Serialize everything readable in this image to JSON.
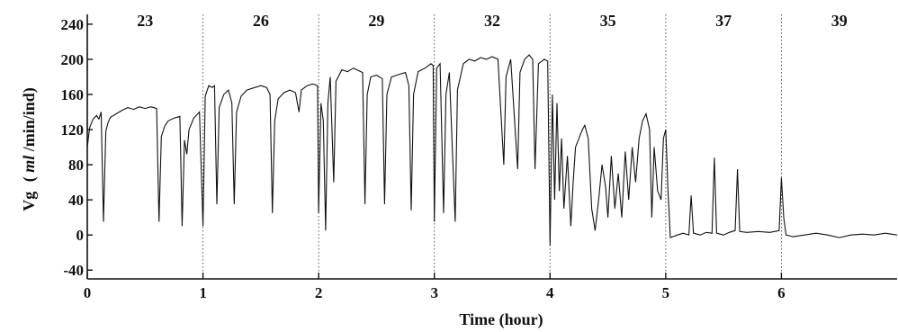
{
  "chart_data": {
    "type": "line",
    "title": "",
    "xlabel": "Time (hour)",
    "ylabel_prefix": "Vg",
    "ylabel_unit_italic": "ml",
    "ylabel_unit_rest": "/min/ind)",
    "ylabel_open": "(",
    "xlim": [
      0,
      7
    ],
    "ylim": [
      -50,
      245
    ],
    "x_ticks": [
      0,
      1,
      2,
      3,
      4,
      5,
      6
    ],
    "x_tick_labels": [
      "0",
      "1",
      "2",
      "3",
      "4",
      "5",
      "6"
    ],
    "y_ticks": [
      -40,
      0,
      40,
      80,
      120,
      160,
      200,
      240
    ],
    "y_tick_labels": [
      "-40",
      "0",
      "40",
      "80",
      "120",
      "160",
      "200",
      "240"
    ],
    "segment_dividers": [
      1,
      2,
      3,
      4,
      5,
      6
    ],
    "segment_labels": [
      {
        "x": 0.5,
        "label": "23"
      },
      {
        "x": 1.5,
        "label": "26"
      },
      {
        "x": 2.5,
        "label": "29"
      },
      {
        "x": 3.5,
        "label": "32"
      },
      {
        "x": 4.5,
        "label": "35"
      },
      {
        "x": 5.5,
        "label": "37"
      },
      {
        "x": 6.5,
        "label": "39"
      }
    ],
    "series": [
      {
        "points": [
          [
            0,
            100
          ],
          [
            0.02,
            122
          ],
          [
            0.05,
            132
          ],
          [
            0.08,
            136
          ],
          [
            0.1,
            132
          ],
          [
            0.12,
            140
          ],
          [
            0.14,
            15
          ],
          [
            0.16,
            118
          ],
          [
            0.18,
            128
          ],
          [
            0.2,
            134
          ],
          [
            0.25,
            138
          ],
          [
            0.3,
            142
          ],
          [
            0.35,
            145
          ],
          [
            0.4,
            143
          ],
          [
            0.45,
            146
          ],
          [
            0.5,
            144
          ],
          [
            0.55,
            146
          ],
          [
            0.6,
            144
          ],
          [
            0.62,
            15
          ],
          [
            0.64,
            112
          ],
          [
            0.67,
            124
          ],
          [
            0.7,
            130
          ],
          [
            0.75,
            133
          ],
          [
            0.8,
            135
          ],
          [
            0.82,
            10
          ],
          [
            0.84,
            108
          ],
          [
            0.86,
            92
          ],
          [
            0.88,
            120
          ],
          [
            0.92,
            133
          ],
          [
            0.97,
            140
          ],
          [
            1.0,
            10
          ],
          [
            1.02,
            158
          ],
          [
            1.05,
            170
          ],
          [
            1.08,
            168
          ],
          [
            1.1,
            170
          ],
          [
            1.12,
            35
          ],
          [
            1.14,
            145
          ],
          [
            1.18,
            160
          ],
          [
            1.22,
            165
          ],
          [
            1.25,
            150
          ],
          [
            1.27,
            35
          ],
          [
            1.29,
            140
          ],
          [
            1.33,
            158
          ],
          [
            1.38,
            165
          ],
          [
            1.45,
            168
          ],
          [
            1.5,
            170
          ],
          [
            1.55,
            168
          ],
          [
            1.58,
            160
          ],
          [
            1.6,
            25
          ],
          [
            1.62,
            130
          ],
          [
            1.65,
            155
          ],
          [
            1.7,
            162
          ],
          [
            1.75,
            165
          ],
          [
            1.8,
            162
          ],
          [
            1.83,
            140
          ],
          [
            1.85,
            165
          ],
          [
            1.9,
            170
          ],
          [
            1.95,
            172
          ],
          [
            1.99,
            170
          ],
          [
            2.0,
            25
          ],
          [
            2.02,
            150
          ],
          [
            2.04,
            130
          ],
          [
            2.06,
            5
          ],
          [
            2.08,
            150
          ],
          [
            2.1,
            180
          ],
          [
            2.13,
            60
          ],
          [
            2.15,
            175
          ],
          [
            2.2,
            188
          ],
          [
            2.25,
            186
          ],
          [
            2.3,
            190
          ],
          [
            2.38,
            185
          ],
          [
            2.4,
            35
          ],
          [
            2.42,
            160
          ],
          [
            2.45,
            180
          ],
          [
            2.5,
            182
          ],
          [
            2.55,
            178
          ],
          [
            2.57,
            35
          ],
          [
            2.59,
            160
          ],
          [
            2.63,
            180
          ],
          [
            2.7,
            183
          ],
          [
            2.75,
            185
          ],
          [
            2.78,
            170
          ],
          [
            2.8,
            28
          ],
          [
            2.82,
            160
          ],
          [
            2.86,
            186
          ],
          [
            2.92,
            190
          ],
          [
            2.97,
            195
          ],
          [
            2.99,
            193
          ],
          [
            3.0,
            15
          ],
          [
            3.02,
            190
          ],
          [
            3.05,
            195
          ],
          [
            3.08,
            25
          ],
          [
            3.1,
            160
          ],
          [
            3.13,
            185
          ],
          [
            3.18,
            15
          ],
          [
            3.2,
            165
          ],
          [
            3.25,
            195
          ],
          [
            3.3,
            200
          ],
          [
            3.35,
            198
          ],
          [
            3.4,
            202
          ],
          [
            3.45,
            200
          ],
          [
            3.5,
            203
          ],
          [
            3.55,
            200
          ],
          [
            3.6,
            80
          ],
          [
            3.62,
            180
          ],
          [
            3.66,
            200
          ],
          [
            3.72,
            75
          ],
          [
            3.74,
            185
          ],
          [
            3.78,
            200
          ],
          [
            3.82,
            205
          ],
          [
            3.85,
            200
          ],
          [
            3.87,
            75
          ],
          [
            3.9,
            195
          ],
          [
            3.95,
            200
          ],
          [
            3.98,
            198
          ],
          [
            4.0,
            -12
          ],
          [
            4.02,
            160
          ],
          [
            4.04,
            40
          ],
          [
            4.06,
            150
          ],
          [
            4.08,
            50
          ],
          [
            4.1,
            110
          ],
          [
            4.12,
            30
          ],
          [
            4.15,
            90
          ],
          [
            4.18,
            10
          ],
          [
            4.2,
            60
          ],
          [
            4.22,
            100
          ],
          [
            4.25,
            110
          ],
          [
            4.28,
            120
          ],
          [
            4.3,
            125
          ],
          [
            4.33,
            110
          ],
          [
            4.36,
            30
          ],
          [
            4.39,
            5
          ],
          [
            4.42,
            40
          ],
          [
            4.45,
            80
          ],
          [
            4.48,
            55
          ],
          [
            4.5,
            20
          ],
          [
            4.53,
            90
          ],
          [
            4.56,
            30
          ],
          [
            4.59,
            70
          ],
          [
            4.62,
            20
          ],
          [
            4.65,
            95
          ],
          [
            4.68,
            40
          ],
          [
            4.71,
            100
          ],
          [
            4.74,
            60
          ],
          [
            4.77,
            110
          ],
          [
            4.8,
            130
          ],
          [
            4.83,
            138
          ],
          [
            4.86,
            120
          ],
          [
            4.88,
            20
          ],
          [
            4.9,
            100
          ],
          [
            4.93,
            50
          ],
          [
            4.96,
            40
          ],
          [
            4.98,
            110
          ],
          [
            5.0,
            120
          ],
          [
            5.02,
            50
          ],
          [
            5.04,
            -3
          ],
          [
            5.1,
            0
          ],
          [
            5.15,
            2
          ],
          [
            5.2,
            0
          ],
          [
            5.22,
            45
          ],
          [
            5.24,
            2
          ],
          [
            5.3,
            0
          ],
          [
            5.35,
            3
          ],
          [
            5.4,
            2
          ],
          [
            5.42,
            88
          ],
          [
            5.44,
            2
          ],
          [
            5.5,
            0
          ],
          [
            5.55,
            3
          ],
          [
            5.6,
            5
          ],
          [
            5.62,
            75
          ],
          [
            5.64,
            4
          ],
          [
            5.7,
            3
          ],
          [
            5.8,
            4
          ],
          [
            5.9,
            3
          ],
          [
            5.98,
            5
          ],
          [
            6.0,
            65
          ],
          [
            6.02,
            20
          ],
          [
            6.04,
            0
          ],
          [
            6.1,
            -2
          ],
          [
            6.2,
            0
          ],
          [
            6.3,
            2
          ],
          [
            6.4,
            0
          ],
          [
            6.5,
            -3
          ],
          [
            6.6,
            0
          ],
          [
            6.7,
            1
          ],
          [
            6.8,
            0
          ],
          [
            6.9,
            2
          ],
          [
            7.0,
            0
          ]
        ]
      }
    ],
    "grid": false
  }
}
